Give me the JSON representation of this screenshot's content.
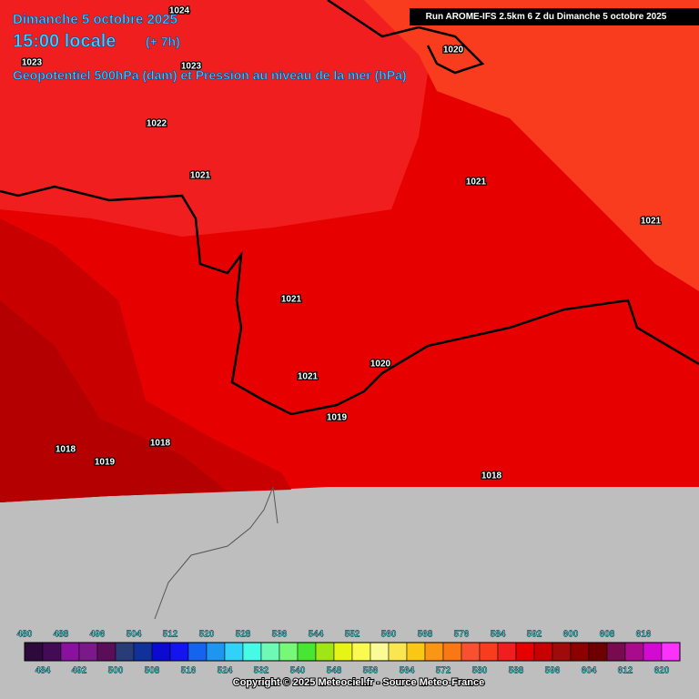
{
  "header": {
    "date": "Dimanche 5 octobre 2025",
    "time": "15:00 locale",
    "lead": "(+ 7h)",
    "field": "Geopotentiel 500hPa (dam) et Pression au niveau de la mer (hPa)"
  },
  "run": "Run AROME-IFS 2.5km 6 Z du Dimanche 5 octobre 2025",
  "isobar_labels": [
    1024,
    1023,
    1023,
    1022,
    1021,
    1020,
    1021,
    1021,
    1021,
    1020,
    1021,
    1019,
    1018,
    1018,
    1019,
    1018
  ],
  "colorbar": {
    "top_labels": [
      480,
      488,
      496,
      504,
      512,
      520,
      528,
      536,
      544,
      552,
      560,
      568,
      576,
      584,
      592,
      600,
      608,
      616
    ],
    "bottom_labels": [
      484,
      492,
      500,
      508,
      516,
      524,
      532,
      540,
      548,
      556,
      564,
      572,
      580,
      588,
      596,
      604,
      612,
      620
    ],
    "colors": [
      "#2e0a3c",
      "#450a55",
      "#8a10a0",
      "#7a1a8a",
      "#5a0e5a",
      "#283c78",
      "#10309a",
      "#0a0ad0",
      "#1414f0",
      "#1464f0",
      "#1e96f0",
      "#32d2f8",
      "#46fae6",
      "#6efab4",
      "#78f878",
      "#46e632",
      "#a0e614",
      "#e6f514",
      "#fafa50",
      "#fafa96",
      "#fae650",
      "#fac814",
      "#fa9614",
      "#fa7814",
      "#fa5032",
      "#fa3c1e",
      "#f01e1e",
      "#e60000",
      "#c80000",
      "#a00a0a",
      "#8c0000",
      "#6e0000",
      "#780a50",
      "#aa0a8c",
      "#d20ad2",
      "#fa32fa"
    ]
  },
  "copyright": "Copyright © 2025 Meteociel.fr - Source Meteo-France"
}
